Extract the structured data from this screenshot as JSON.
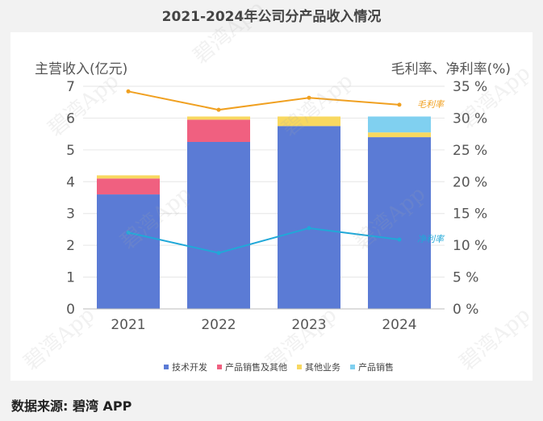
{
  "chart_data": {
    "type": "bar",
    "stacked": true,
    "title": "2021-2024年公司分产品收入情况",
    "ylabel_left": "主营收入(亿元)",
    "ylabel_right": "毛利率、净利率(%)",
    "categories": [
      "2021",
      "2022",
      "2023",
      "2024"
    ],
    "ylim_left": [
      0,
      7
    ],
    "yticks_left": [
      "0",
      "1",
      "2",
      "3",
      "4",
      "5",
      "6",
      "7"
    ],
    "ylim_right": [
      0,
      35
    ],
    "yticks_right": [
      "0 %",
      "5 %",
      "10 %",
      "15 %",
      "20 %",
      "25 %",
      "30 %",
      "35 %"
    ],
    "series": [
      {
        "name": "技术开发",
        "color": "#5b7bd5",
        "values": [
          3.6,
          5.25,
          5.75,
          5.4
        ]
      },
      {
        "name": "产品销售及其他",
        "color": "#f06080",
        "values": [
          0.5,
          0.7,
          0,
          0
        ]
      },
      {
        "name": "其他业务",
        "color": "#f8d860",
        "values": [
          0.1,
          0.1,
          0.3,
          0.15
        ]
      },
      {
        "name": "产品销售",
        "color": "#80d0f0",
        "values": [
          0,
          0,
          0,
          0.5
        ]
      }
    ],
    "lines": [
      {
        "name": "毛利率",
        "color": "#f0a020",
        "values": [
          34.2,
          31.3,
          33.2,
          32.1
        ],
        "label": "毛利率"
      },
      {
        "name": "净利率",
        "color": "#20a8d8",
        "values": [
          12.0,
          8.8,
          12.7,
          10.9
        ],
        "label": "净利率"
      }
    ],
    "legend": [
      "技术开发",
      "产品销售及其他",
      "其他业务",
      "产品销售"
    ],
    "legend_position": "bottom"
  },
  "source": "数据来源: 碧湾 APP",
  "watermark": "碧湾App"
}
